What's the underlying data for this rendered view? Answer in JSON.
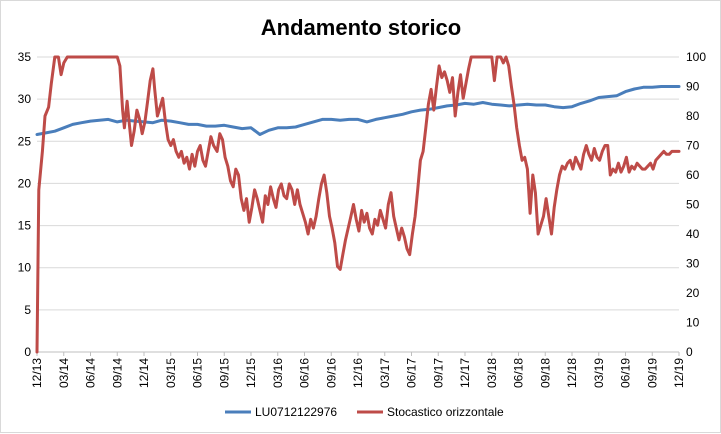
{
  "chart_data": {
    "type": "line",
    "title": "Andamento storico",
    "grid": true,
    "legend_position": "bottom",
    "y_left_ticks": [
      "0",
      "5",
      "10",
      "15",
      "20",
      "25",
      "30",
      "35"
    ],
    "y_right_ticks": [
      "0",
      "10",
      "20",
      "30",
      "40",
      "50",
      "60",
      "70",
      "80",
      "90",
      "100"
    ],
    "ylim_left": [
      0,
      35
    ],
    "ylim_right": [
      0,
      100
    ],
    "x_tick_labels": [
      "12/13",
      "03/14",
      "06/14",
      "09/14",
      "12/14",
      "03/15",
      "06/15",
      "09/15",
      "12/15",
      "03/16",
      "06/16",
      "09/16",
      "12/16",
      "03/17",
      "06/17",
      "09/17",
      "12/17",
      "03/18",
      "06/18",
      "09/18",
      "12/18",
      "03/19",
      "06/19",
      "09/19",
      "12/19"
    ],
    "x_range_months": [
      0,
      72
    ],
    "series": [
      {
        "name": "LU0712122976",
        "axis": "left",
        "color": "#4a7ebb",
        "points": [
          [
            0,
            25.8
          ],
          [
            1,
            26.0
          ],
          [
            2,
            26.2
          ],
          [
            3,
            26.6
          ],
          [
            4,
            27.0
          ],
          [
            5,
            27.2
          ],
          [
            6,
            27.4
          ],
          [
            7,
            27.5
          ],
          [
            8,
            27.6
          ],
          [
            9,
            27.3
          ],
          [
            10,
            27.5
          ],
          [
            11,
            27.4
          ],
          [
            12,
            27.3
          ],
          [
            13,
            27.2
          ],
          [
            14,
            27.5
          ],
          [
            15,
            27.4
          ],
          [
            16,
            27.2
          ],
          [
            17,
            27.0
          ],
          [
            18,
            27.0
          ],
          [
            19,
            26.8
          ],
          [
            20,
            26.8
          ],
          [
            21,
            26.9
          ],
          [
            22,
            26.7
          ],
          [
            23,
            26.5
          ],
          [
            24,
            26.6
          ],
          [
            25,
            25.8
          ],
          [
            26,
            26.3
          ],
          [
            27,
            26.6
          ],
          [
            28,
            26.6
          ],
          [
            29,
            26.7
          ],
          [
            30,
            27.0
          ],
          [
            31,
            27.3
          ],
          [
            32,
            27.6
          ],
          [
            33,
            27.6
          ],
          [
            34,
            27.5
          ],
          [
            35,
            27.6
          ],
          [
            36,
            27.6
          ],
          [
            37,
            27.3
          ],
          [
            38,
            27.6
          ],
          [
            39,
            27.8
          ],
          [
            40,
            28.0
          ],
          [
            41,
            28.2
          ],
          [
            42,
            28.5
          ],
          [
            43,
            28.7
          ],
          [
            44,
            28.8
          ],
          [
            45,
            29.0
          ],
          [
            46,
            29.2
          ],
          [
            47,
            29.3
          ],
          [
            48,
            29.5
          ],
          [
            49,
            29.4
          ],
          [
            50,
            29.6
          ],
          [
            51,
            29.4
          ],
          [
            52,
            29.3
          ],
          [
            53,
            29.2
          ],
          [
            54,
            29.3
          ],
          [
            55,
            29.4
          ],
          [
            56,
            29.3
          ],
          [
            57,
            29.3
          ],
          [
            58,
            29.1
          ],
          [
            59,
            29.0
          ],
          [
            60,
            29.1
          ],
          [
            61,
            29.5
          ],
          [
            62,
            29.8
          ],
          [
            63,
            30.2
          ],
          [
            64,
            30.3
          ],
          [
            65,
            30.4
          ],
          [
            66,
            30.9
          ],
          [
            67,
            31.2
          ],
          [
            68,
            31.4
          ],
          [
            69,
            31.4
          ],
          [
            70,
            31.5
          ],
          [
            71,
            31.5
          ],
          [
            72,
            31.5
          ]
        ]
      },
      {
        "name": "Stocastico orizzontale",
        "axis": "right",
        "color": "#be4b48",
        "points": [
          [
            0.0,
            0
          ],
          [
            0.2,
            55
          ],
          [
            0.6,
            68
          ],
          [
            0.9,
            80
          ],
          [
            1.3,
            83
          ],
          [
            1.6,
            91
          ],
          [
            2.0,
            100
          ],
          [
            2.4,
            100
          ],
          [
            2.7,
            94
          ],
          [
            3.0,
            98
          ],
          [
            3.4,
            100
          ],
          [
            4,
            100
          ],
          [
            5,
            100
          ],
          [
            6,
            100
          ],
          [
            7,
            100
          ],
          [
            8,
            100
          ],
          [
            9,
            100
          ],
          [
            9.3,
            97
          ],
          [
            9.6,
            82
          ],
          [
            9.8,
            76
          ],
          [
            10.1,
            85
          ],
          [
            10.3,
            79
          ],
          [
            10.6,
            70
          ],
          [
            10.9,
            75
          ],
          [
            11.2,
            82
          ],
          [
            11.5,
            79
          ],
          [
            11.8,
            74
          ],
          [
            12.1,
            78
          ],
          [
            12.4,
            85
          ],
          [
            12.7,
            92
          ],
          [
            13.0,
            96
          ],
          [
            13.2,
            89
          ],
          [
            13.5,
            80
          ],
          [
            13.8,
            83
          ],
          [
            14.1,
            86
          ],
          [
            14.4,
            78
          ],
          [
            14.7,
            72
          ],
          [
            15.0,
            70
          ],
          [
            15.3,
            72
          ],
          [
            15.6,
            68
          ],
          [
            15.9,
            66
          ],
          [
            16.2,
            68
          ],
          [
            16.5,
            64
          ],
          [
            16.8,
            66
          ],
          [
            17.1,
            62
          ],
          [
            17.4,
            67
          ],
          [
            17.7,
            63
          ],
          [
            18.0,
            68
          ],
          [
            18.3,
            70
          ],
          [
            18.6,
            65
          ],
          [
            18.9,
            63
          ],
          [
            19.2,
            68
          ],
          [
            19.5,
            73
          ],
          [
            19.8,
            70
          ],
          [
            20.2,
            68
          ],
          [
            20.5,
            74
          ],
          [
            20.8,
            72
          ],
          [
            21.1,
            66
          ],
          [
            21.4,
            63
          ],
          [
            21.7,
            58
          ],
          [
            22.0,
            56
          ],
          [
            22.3,
            62
          ],
          [
            22.6,
            60
          ],
          [
            22.9,
            52
          ],
          [
            23.2,
            48
          ],
          [
            23.5,
            52
          ],
          [
            23.8,
            44
          ],
          [
            24.1,
            49
          ],
          [
            24.4,
            55
          ],
          [
            24.7,
            52
          ],
          [
            25.0,
            48
          ],
          [
            25.3,
            44
          ],
          [
            25.6,
            53
          ],
          [
            25.9,
            50
          ],
          [
            26.2,
            56
          ],
          [
            26.5,
            52
          ],
          [
            26.8,
            49
          ],
          [
            27.1,
            55
          ],
          [
            27.4,
            57
          ],
          [
            27.7,
            53
          ],
          [
            28.0,
            52
          ],
          [
            28.3,
            57
          ],
          [
            28.6,
            55
          ],
          [
            28.9,
            50
          ],
          [
            29.2,
            55
          ],
          [
            29.5,
            50
          ],
          [
            29.8,
            47
          ],
          [
            30.1,
            44
          ],
          [
            30.4,
            40
          ],
          [
            30.7,
            45
          ],
          [
            31.0,
            42
          ],
          [
            31.3,
            46
          ],
          [
            31.6,
            52
          ],
          [
            31.9,
            57
          ],
          [
            32.2,
            60
          ],
          [
            32.5,
            54
          ],
          [
            32.8,
            46
          ],
          [
            33.1,
            42
          ],
          [
            33.4,
            37
          ],
          [
            33.7,
            29
          ],
          [
            34.0,
            28
          ],
          [
            34.3,
            33
          ],
          [
            34.6,
            38
          ],
          [
            34.9,
            42
          ],
          [
            35.2,
            46
          ],
          [
            35.5,
            50
          ],
          [
            35.8,
            45
          ],
          [
            36.1,
            41
          ],
          [
            36.4,
            48
          ],
          [
            36.7,
            44
          ],
          [
            37.0,
            47
          ],
          [
            37.3,
            42
          ],
          [
            37.6,
            40
          ],
          [
            37.9,
            45
          ],
          [
            38.2,
            43
          ],
          [
            38.5,
            48
          ],
          [
            38.8,
            45
          ],
          [
            39.1,
            42
          ],
          [
            39.4,
            50
          ],
          [
            39.7,
            54
          ],
          [
            40.0,
            46
          ],
          [
            40.3,
            42
          ],
          [
            40.6,
            38
          ],
          [
            40.9,
            42
          ],
          [
            41.2,
            39
          ],
          [
            41.5,
            35
          ],
          [
            41.8,
            33
          ],
          [
            42.1,
            40
          ],
          [
            42.4,
            46
          ],
          [
            42.7,
            55
          ],
          [
            43.0,
            65
          ],
          [
            43.3,
            68
          ],
          [
            43.6,
            76
          ],
          [
            43.9,
            84
          ],
          [
            44.2,
            89
          ],
          [
            44.5,
            82
          ],
          [
            44.8,
            90
          ],
          [
            45.1,
            97
          ],
          [
            45.4,
            93
          ],
          [
            45.7,
            95
          ],
          [
            46.0,
            92
          ],
          [
            46.3,
            88
          ],
          [
            46.6,
            93
          ],
          [
            46.9,
            80
          ],
          [
            47.2,
            88
          ],
          [
            47.5,
            94
          ],
          [
            47.8,
            86
          ],
          [
            48.1,
            91
          ],
          [
            48.4,
            96
          ],
          [
            48.7,
            100
          ],
          [
            49,
            100
          ],
          [
            50,
            100
          ],
          [
            51,
            100
          ],
          [
            51.3,
            92
          ],
          [
            51.6,
            100
          ],
          [
            52,
            100
          ],
          [
            52.3,
            98
          ],
          [
            52.6,
            100
          ],
          [
            52.9,
            97
          ],
          [
            53.2,
            90
          ],
          [
            53.5,
            84
          ],
          [
            53.8,
            76
          ],
          [
            54.1,
            70
          ],
          [
            54.4,
            65
          ],
          [
            54.7,
            66
          ],
          [
            55.0,
            62
          ],
          [
            55.3,
            47
          ],
          [
            55.6,
            60
          ],
          [
            55.9,
            54
          ],
          [
            56.2,
            40
          ],
          [
            56.5,
            43
          ],
          [
            56.8,
            46
          ],
          [
            57.1,
            52
          ],
          [
            57.4,
            46
          ],
          [
            57.7,
            40
          ],
          [
            58.0,
            49
          ],
          [
            58.3,
            55
          ],
          [
            58.6,
            60
          ],
          [
            58.9,
            63
          ],
          [
            59.2,
            62
          ],
          [
            59.5,
            64
          ],
          [
            59.8,
            65
          ],
          [
            60.1,
            62
          ],
          [
            60.4,
            66
          ],
          [
            60.7,
            64
          ],
          [
            61.0,
            62
          ],
          [
            61.3,
            67
          ],
          [
            61.6,
            70
          ],
          [
            61.9,
            67
          ],
          [
            62.2,
            65
          ],
          [
            62.5,
            69
          ],
          [
            62.8,
            66
          ],
          [
            63.1,
            65
          ],
          [
            63.4,
            68
          ],
          [
            63.7,
            70
          ],
          [
            64.0,
            70
          ],
          [
            64.3,
            60
          ],
          [
            64.6,
            62
          ],
          [
            64.9,
            61
          ],
          [
            65.2,
            64
          ],
          [
            65.5,
            61
          ],
          [
            65.8,
            63
          ],
          [
            66.1,
            66
          ],
          [
            66.4,
            61
          ],
          [
            66.7,
            63
          ],
          [
            67.0,
            62
          ],
          [
            67.3,
            64
          ],
          [
            67.6,
            63
          ],
          [
            67.9,
            62
          ],
          [
            68.2,
            62
          ],
          [
            68.5,
            63
          ],
          [
            68.8,
            64
          ],
          [
            69.1,
            62
          ],
          [
            69.4,
            65
          ],
          [
            69.7,
            66
          ],
          [
            70.0,
            67
          ],
          [
            70.3,
            68
          ],
          [
            70.6,
            67
          ],
          [
            70.9,
            67
          ],
          [
            71.2,
            68
          ],
          [
            71.5,
            68
          ],
          [
            72.0,
            68
          ]
        ]
      }
    ]
  }
}
